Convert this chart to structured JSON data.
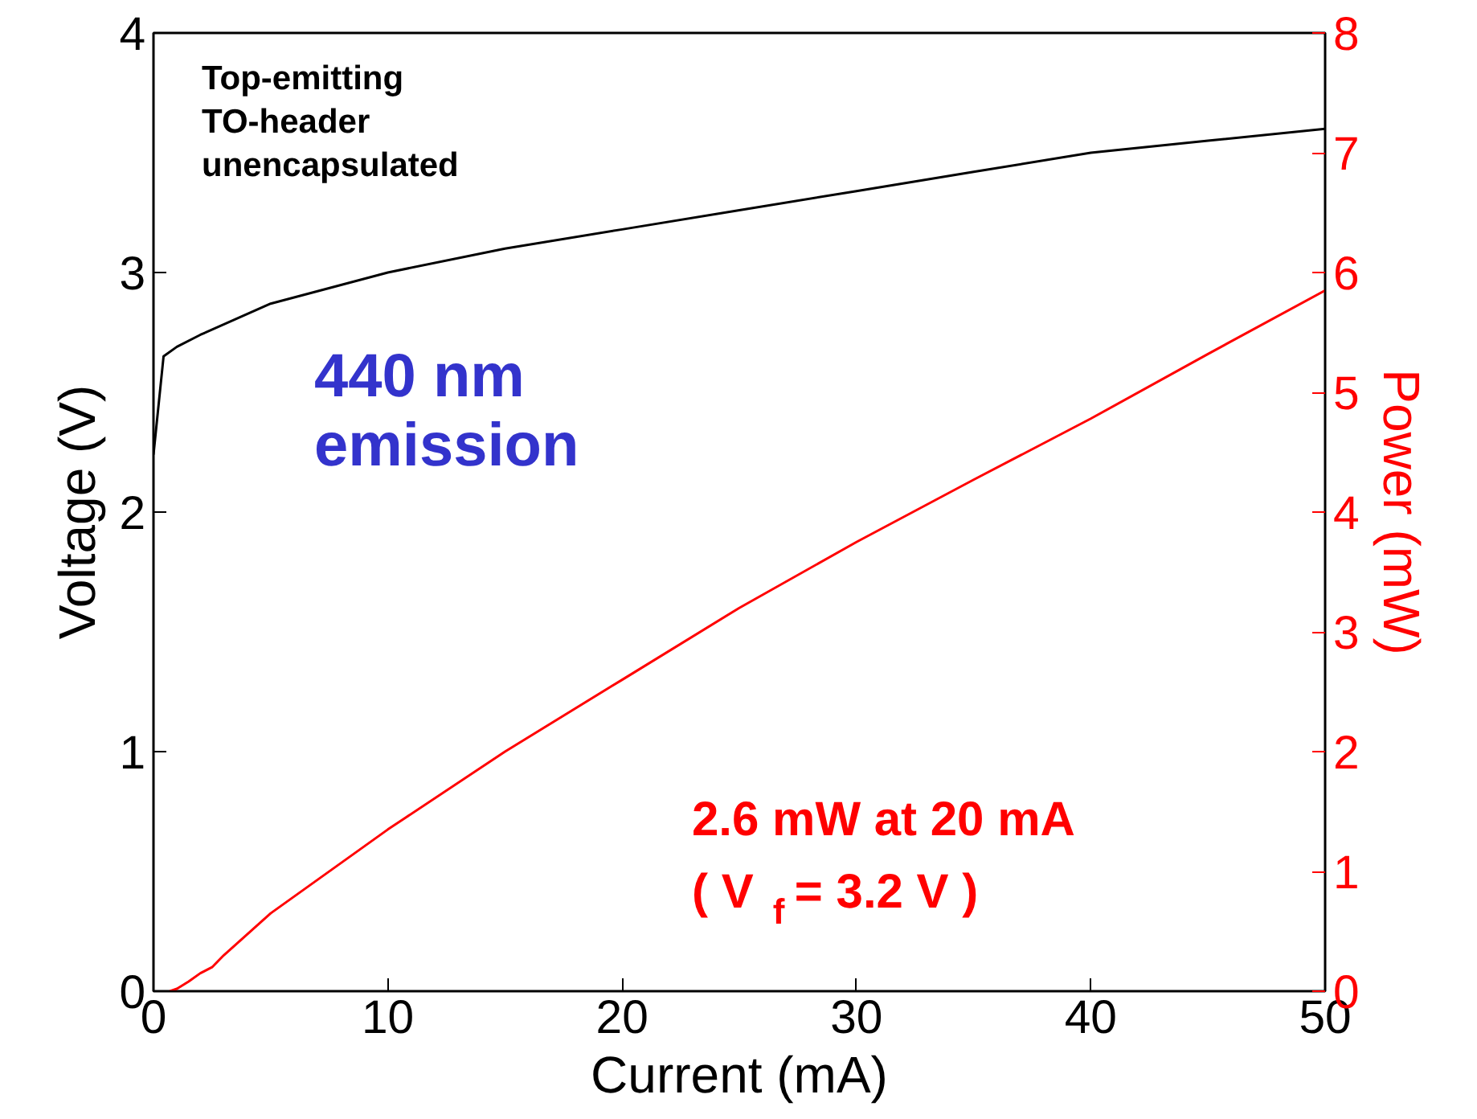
{
  "chart_data": {
    "type": "line",
    "xlabel": "Current (mA)",
    "ylabel": "Voltage (V)",
    "y2label": "Power (mW)",
    "xlim": [
      0,
      50
    ],
    "xticks": [
      0,
      10,
      20,
      30,
      40,
      50
    ],
    "ylim": [
      0,
      4
    ],
    "yticks": [
      0,
      1,
      2,
      3,
      4
    ],
    "y2lim": [
      0,
      8
    ],
    "y2ticks": [
      0,
      1,
      2,
      3,
      4,
      5,
      6,
      7,
      8
    ],
    "grid": false,
    "marker": "none",
    "line_style": "solid",
    "series": [
      {
        "color": "#000000",
        "axis": "y",
        "x": [
          0,
          0.43,
          1,
          2,
          5,
          10,
          15,
          20,
          25,
          30,
          35,
          40,
          45,
          50
        ],
        "values": [
          2.24,
          2.65,
          2.69,
          2.74,
          2.87,
          3.0,
          3.1,
          3.18,
          3.26,
          3.34,
          3.42,
          3.5,
          3.55,
          3.6
        ]
      },
      {
        "color": "#ff0000",
        "axis": "y2",
        "x": [
          0.7,
          1,
          1.5,
          2,
          2.5,
          3,
          5,
          10,
          15,
          20,
          25,
          30,
          35,
          40,
          45,
          50
        ],
        "values": [
          0,
          0.02,
          0.08,
          0.15,
          0.2,
          0.3,
          0.65,
          1.35,
          2.0,
          2.6,
          3.2,
          3.75,
          4.27,
          4.78,
          5.32,
          5.85
        ]
      }
    ],
    "annotations": [
      "Top-emitting\nTO-header\nunencapsulated",
      "440 nm\nemission",
      "2.6 mW at 20 mA",
      "( V$_{f}$ = 3.2 V )"
    ]
  }
}
